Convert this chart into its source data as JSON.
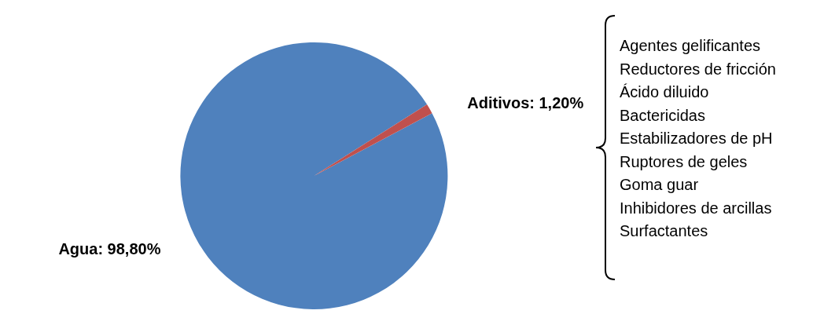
{
  "chart_data": {
    "type": "pie",
    "categories": [
      "Agua",
      "Aditivos"
    ],
    "values": [
      98.8,
      1.2
    ],
    "colors": [
      "#4f81bd",
      "#c0504d"
    ],
    "value_labels": [
      "98,80%",
      "1,20%"
    ],
    "annotations": [
      "Agentes gelificantes",
      "Reductores de fricción",
      "Ácido diluido",
      "Bactericidas",
      "Estabilizadores de pH",
      "Ruptores de geles",
      "Goma guar",
      "Inhibidores de arcillas",
      "Surfactantes"
    ],
    "legend": false
  }
}
